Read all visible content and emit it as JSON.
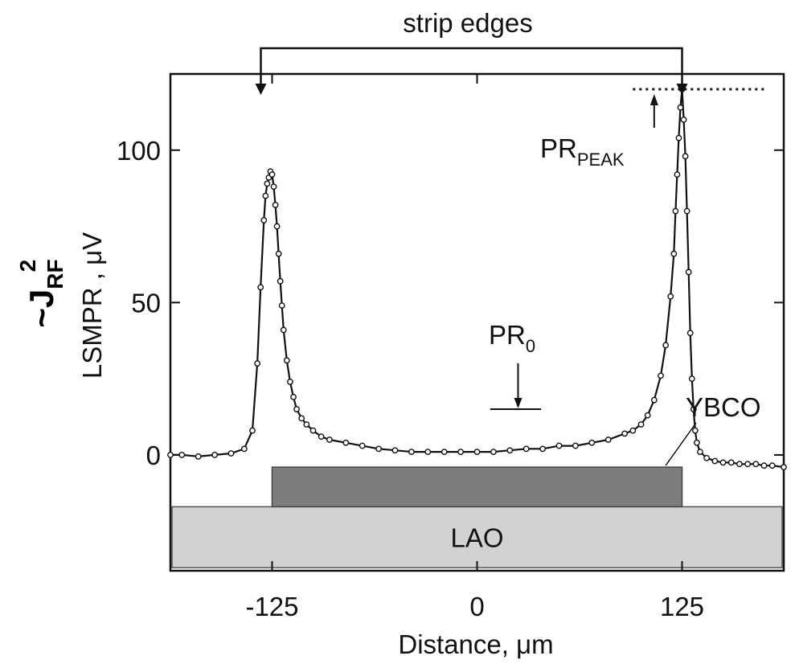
{
  "chart_data": {
    "type": "line",
    "xlabel": "Distance, μm",
    "ylabel": "LSMPR , μV",
    "ylabel_extra": {
      "prefix": "~J",
      "sub": "RF",
      "sup": "2"
    },
    "x_ticks": [
      "-125",
      "0",
      "125"
    ],
    "y_ticks": [
      "0",
      "50",
      "100"
    ],
    "xlim": [
      -187,
      187
    ],
    "ylim": [
      -38,
      125
    ],
    "grid": false,
    "annotations": {
      "strip_edges": "strip edges",
      "pr_peak": {
        "main": "PR",
        "sub": "PEAK"
      },
      "pr_zero": {
        "main": "PR",
        "sub": "0"
      },
      "ybco": "YBCO",
      "lao": "LAO"
    },
    "peak_level": 120,
    "pr0_level": 15,
    "layers": {
      "ybco": {
        "x_start": -125,
        "x_end": 125,
        "y_bottom": -17,
        "y_top": -4
      },
      "lao": {
        "x_start": -187,
        "x_end": 187,
        "y_bottom": -37,
        "y_top": -17
      }
    },
    "series": [
      {
        "marker": "open-circle",
        "x": [
          -187,
          -180,
          -170,
          -160,
          -150,
          -142,
          -137,
          -134,
          -132,
          -130,
          -129,
          -128,
          -127,
          -126,
          -125,
          -124,
          -123,
          -122,
          -121,
          -120,
          -119,
          -118,
          -116,
          -114,
          -112,
          -110,
          -107,
          -104,
          -100,
          -95,
          -90,
          -80,
          -70,
          -60,
          -50,
          -40,
          -30,
          -20,
          -10,
          0,
          10,
          20,
          30,
          40,
          50,
          60,
          70,
          80,
          90,
          95,
          100,
          104,
          108,
          112,
          115,
          118,
          120,
          121,
          122,
          123,
          124,
          125,
          126,
          127,
          128,
          129,
          130,
          131,
          132,
          133,
          134,
          136,
          140,
          145,
          150,
          155,
          160,
          165,
          170,
          175,
          180,
          187
        ],
        "y": [
          0,
          0,
          -0.5,
          0,
          0.5,
          2,
          8,
          30,
          55,
          77,
          85,
          89,
          91,
          93,
          92,
          88,
          82,
          75,
          66,
          57,
          49,
          41,
          31,
          24,
          19,
          15,
          12,
          10,
          8,
          6,
          5,
          4,
          3,
          2,
          1.5,
          1,
          1,
          1,
          1,
          1,
          1,
          1.5,
          2,
          2,
          3,
          3,
          4,
          5,
          7,
          8,
          10,
          13,
          18,
          26,
          36,
          52,
          66,
          80,
          92,
          104,
          114,
          120,
          110,
          98,
          80,
          60,
          40,
          25,
          15,
          8,
          4,
          1,
          -1,
          -2,
          -2.5,
          -2.5,
          -3,
          -3,
          -3,
          -3.5,
          -3.5,
          -4
        ]
      }
    ]
  }
}
